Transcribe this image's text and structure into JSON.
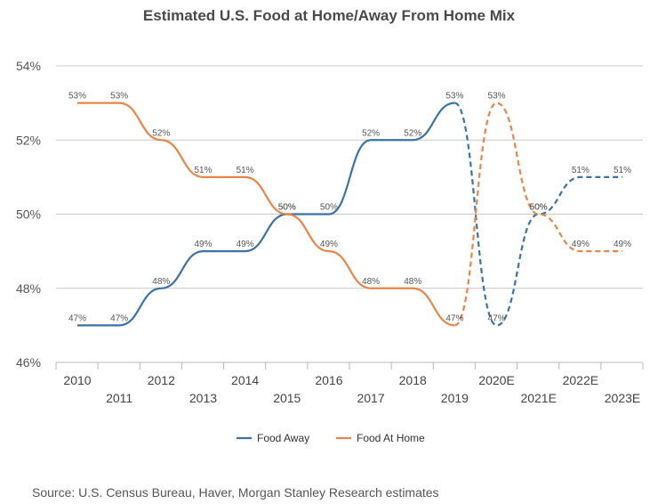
{
  "title": "Estimated U.S. Food at Home/Away From Home Mix",
  "source": "Source: U.S. Census Bureau, Haver, Morgan Stanley Research estimates",
  "chart_data": {
    "type": "line",
    "title": "Estimated U.S. Food at Home/Away From Home Mix",
    "categories": [
      "2010",
      "2011",
      "2012",
      "2013",
      "2014",
      "2015",
      "2016",
      "2017",
      "2018",
      "2019",
      "2020E",
      "2021E",
      "2022E",
      "2023E"
    ],
    "ylim": [
      46,
      54
    ],
    "yticks": [
      46,
      48,
      50,
      52,
      54
    ],
    "ytick_labels": [
      "46%",
      "48%",
      "50%",
      "52%",
      "54%"
    ],
    "actual_through_index": 9,
    "xlabel": "",
    "ylabel": "",
    "legend_position": "bottom",
    "series": [
      {
        "name": "Food Away",
        "color": "#3d72a8",
        "values": [
          47,
          47,
          48,
          49,
          49,
          50,
          50,
          52,
          52,
          53,
          47,
          50,
          51,
          51
        ],
        "labels": [
          "47%",
          "47%",
          "48%",
          "49%",
          "49%",
          "50%",
          "50%",
          "52%",
          "52%",
          "53%",
          "47%",
          "50%",
          "51%",
          "51%"
        ]
      },
      {
        "name": "Food At Home",
        "color": "#e8854a",
        "values": [
          53,
          53,
          52,
          51,
          51,
          50,
          49,
          48,
          48,
          47,
          53,
          50,
          49,
          49
        ],
        "labels": [
          "53%",
          "53%",
          "52%",
          "51%",
          "51%",
          "50%",
          "49%",
          "48%",
          "48%",
          "47%",
          "53%",
          "50%",
          "49%",
          "49%"
        ]
      }
    ]
  }
}
